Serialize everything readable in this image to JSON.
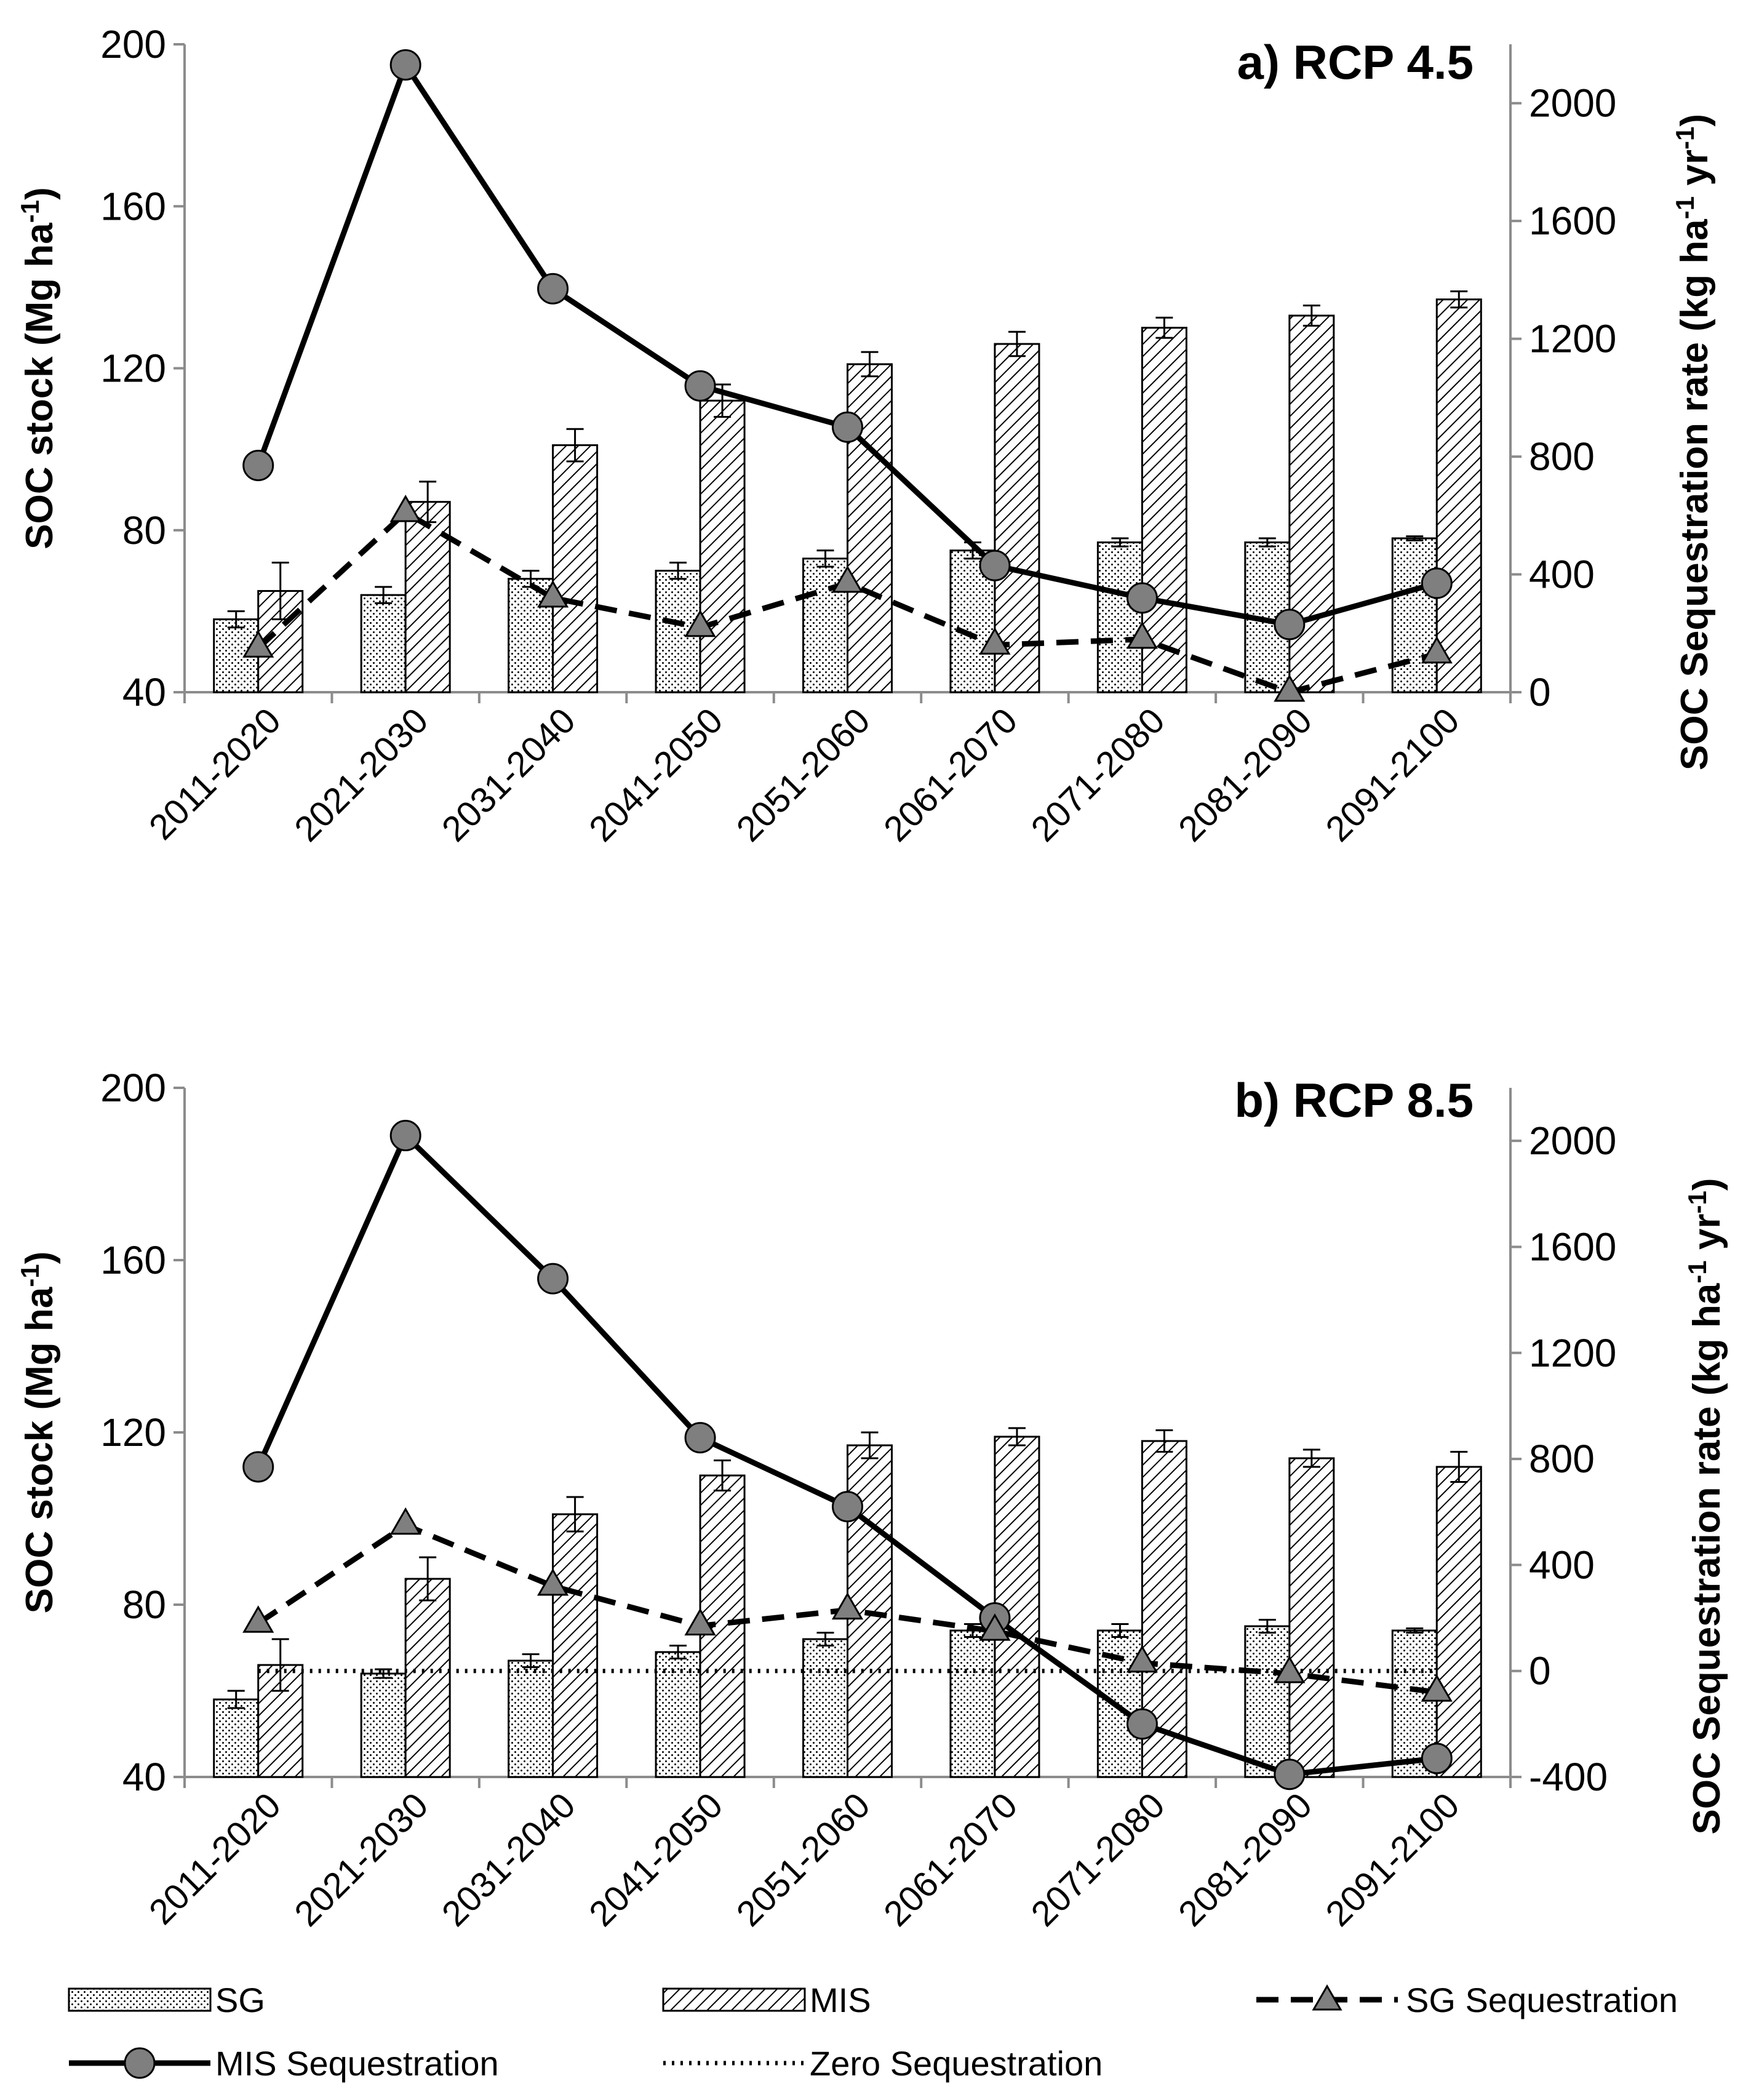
{
  "chart_data": [
    {
      "type": "bar",
      "title": "a) RCP 4.5",
      "categories": [
        "2011-2020",
        "2021-2030",
        "2031-2040",
        "2041-2050",
        "2051-2060",
        "2061-2070",
        "2071-2080",
        "2081-2090",
        "2091-2100"
      ],
      "ylabel": "SOC stock (Mg ha-1)",
      "ylabel_parts": {
        "pre": "SOC  stock (Mg ha",
        "sup": "-1",
        "post": ")"
      },
      "y2label": "SOC Sequestration rate (kg ha-1 yr-1)",
      "y2label_parts": {
        "pre": "SOC Sequestration rate (kg ha",
        "sup1": "-1",
        "mid": " yr",
        "sup2": "-1",
        "post": ")"
      },
      "ylim": [
        40,
        200
      ],
      "yticks": [
        40,
        80,
        120,
        160,
        200
      ],
      "y2lim": [
        0,
        2200
      ],
      "y2ticks": [
        0,
        400,
        800,
        1200,
        1600,
        2000
      ],
      "series": [
        {
          "name": "SG",
          "axis": "left",
          "kind": "bar",
          "values": [
            58,
            64,
            68,
            70,
            73,
            75,
            77,
            77,
            78
          ],
          "errors": [
            2,
            2,
            2,
            2,
            2,
            2,
            1,
            1,
            0.5
          ]
        },
        {
          "name": "MIS",
          "axis": "left",
          "kind": "bar",
          "values": [
            65,
            87,
            101,
            112,
            121,
            126,
            130,
            133,
            137
          ],
          "errors": [
            7,
            5,
            4,
            4,
            3,
            3,
            2.5,
            2.5,
            2
          ]
        },
        {
          "name": "MIS Sequestration",
          "axis": "right",
          "kind": "line",
          "values": [
            770,
            2130,
            1370,
            1040,
            900,
            430,
            320,
            230,
            370
          ]
        },
        {
          "name": "SG Sequestration",
          "axis": "right",
          "kind": "line",
          "values": [
            150,
            610,
            320,
            220,
            370,
            160,
            180,
            0,
            130
          ]
        }
      ]
    },
    {
      "type": "bar",
      "title": "b) RCP 8.5",
      "categories": [
        "2011-2020",
        "2021-2030",
        "2031-2040",
        "2041-2050",
        "2051-2060",
        "2061-2070",
        "2071-2080",
        "2081-2090",
        "2091-2100"
      ],
      "ylabel": "SOC stock (Mg ha-1)",
      "ylabel_parts": {
        "pre": "SOC stock (Mg ha",
        "sup": "-1",
        "post": ")"
      },
      "y2label": "SOC Sequestration rate (kg ha-1 yr-1)",
      "y2label_parts": {
        "pre": "SOC Sequestration rate (kg ha",
        "sup1": "-1",
        "mid": " yr",
        "sup2": "-1",
        "post": ")"
      },
      "ylim": [
        40,
        200
      ],
      "yticks": [
        40,
        80,
        120,
        160,
        200
      ],
      "y2lim": [
        -400,
        2200
      ],
      "y2ticks": [
        -400,
        0,
        400,
        800,
        1200,
        1600,
        2000
      ],
      "series": [
        {
          "name": "SG",
          "axis": "left",
          "kind": "bar",
          "values": [
            58,
            64,
            67,
            69,
            72,
            74,
            74,
            75,
            74
          ],
          "errors": [
            2,
            1,
            1.5,
            1.5,
            1.5,
            1.5,
            1.5,
            1.5,
            0.5
          ]
        },
        {
          "name": "MIS",
          "axis": "left",
          "kind": "bar",
          "values": [
            66,
            86,
            101,
            110,
            117,
            119,
            118,
            114,
            112
          ],
          "errors": [
            6,
            5,
            4,
            3.5,
            3,
            2,
            2.5,
            2,
            3.5
          ]
        },
        {
          "name": "MIS Sequestration",
          "axis": "right",
          "kind": "line",
          "values": [
            770,
            2020,
            1480,
            880,
            620,
            200,
            -200,
            -390,
            -330
          ]
        },
        {
          "name": "SG Sequestration",
          "axis": "right",
          "kind": "line",
          "values": [
            180,
            550,
            320,
            170,
            230,
            150,
            30,
            -10,
            -80
          ]
        },
        {
          "name": "Zero Sequestration",
          "axis": "right",
          "kind": "line",
          "values": [
            0,
            0,
            0,
            0,
            0,
            0,
            0,
            0,
            0
          ]
        }
      ]
    }
  ],
  "legend": {
    "sg": "SG",
    "mis": "MIS",
    "sg_seq": "SG Sequestration",
    "mis_seq": "MIS Sequestration",
    "zero_seq": "Zero Sequestration"
  }
}
